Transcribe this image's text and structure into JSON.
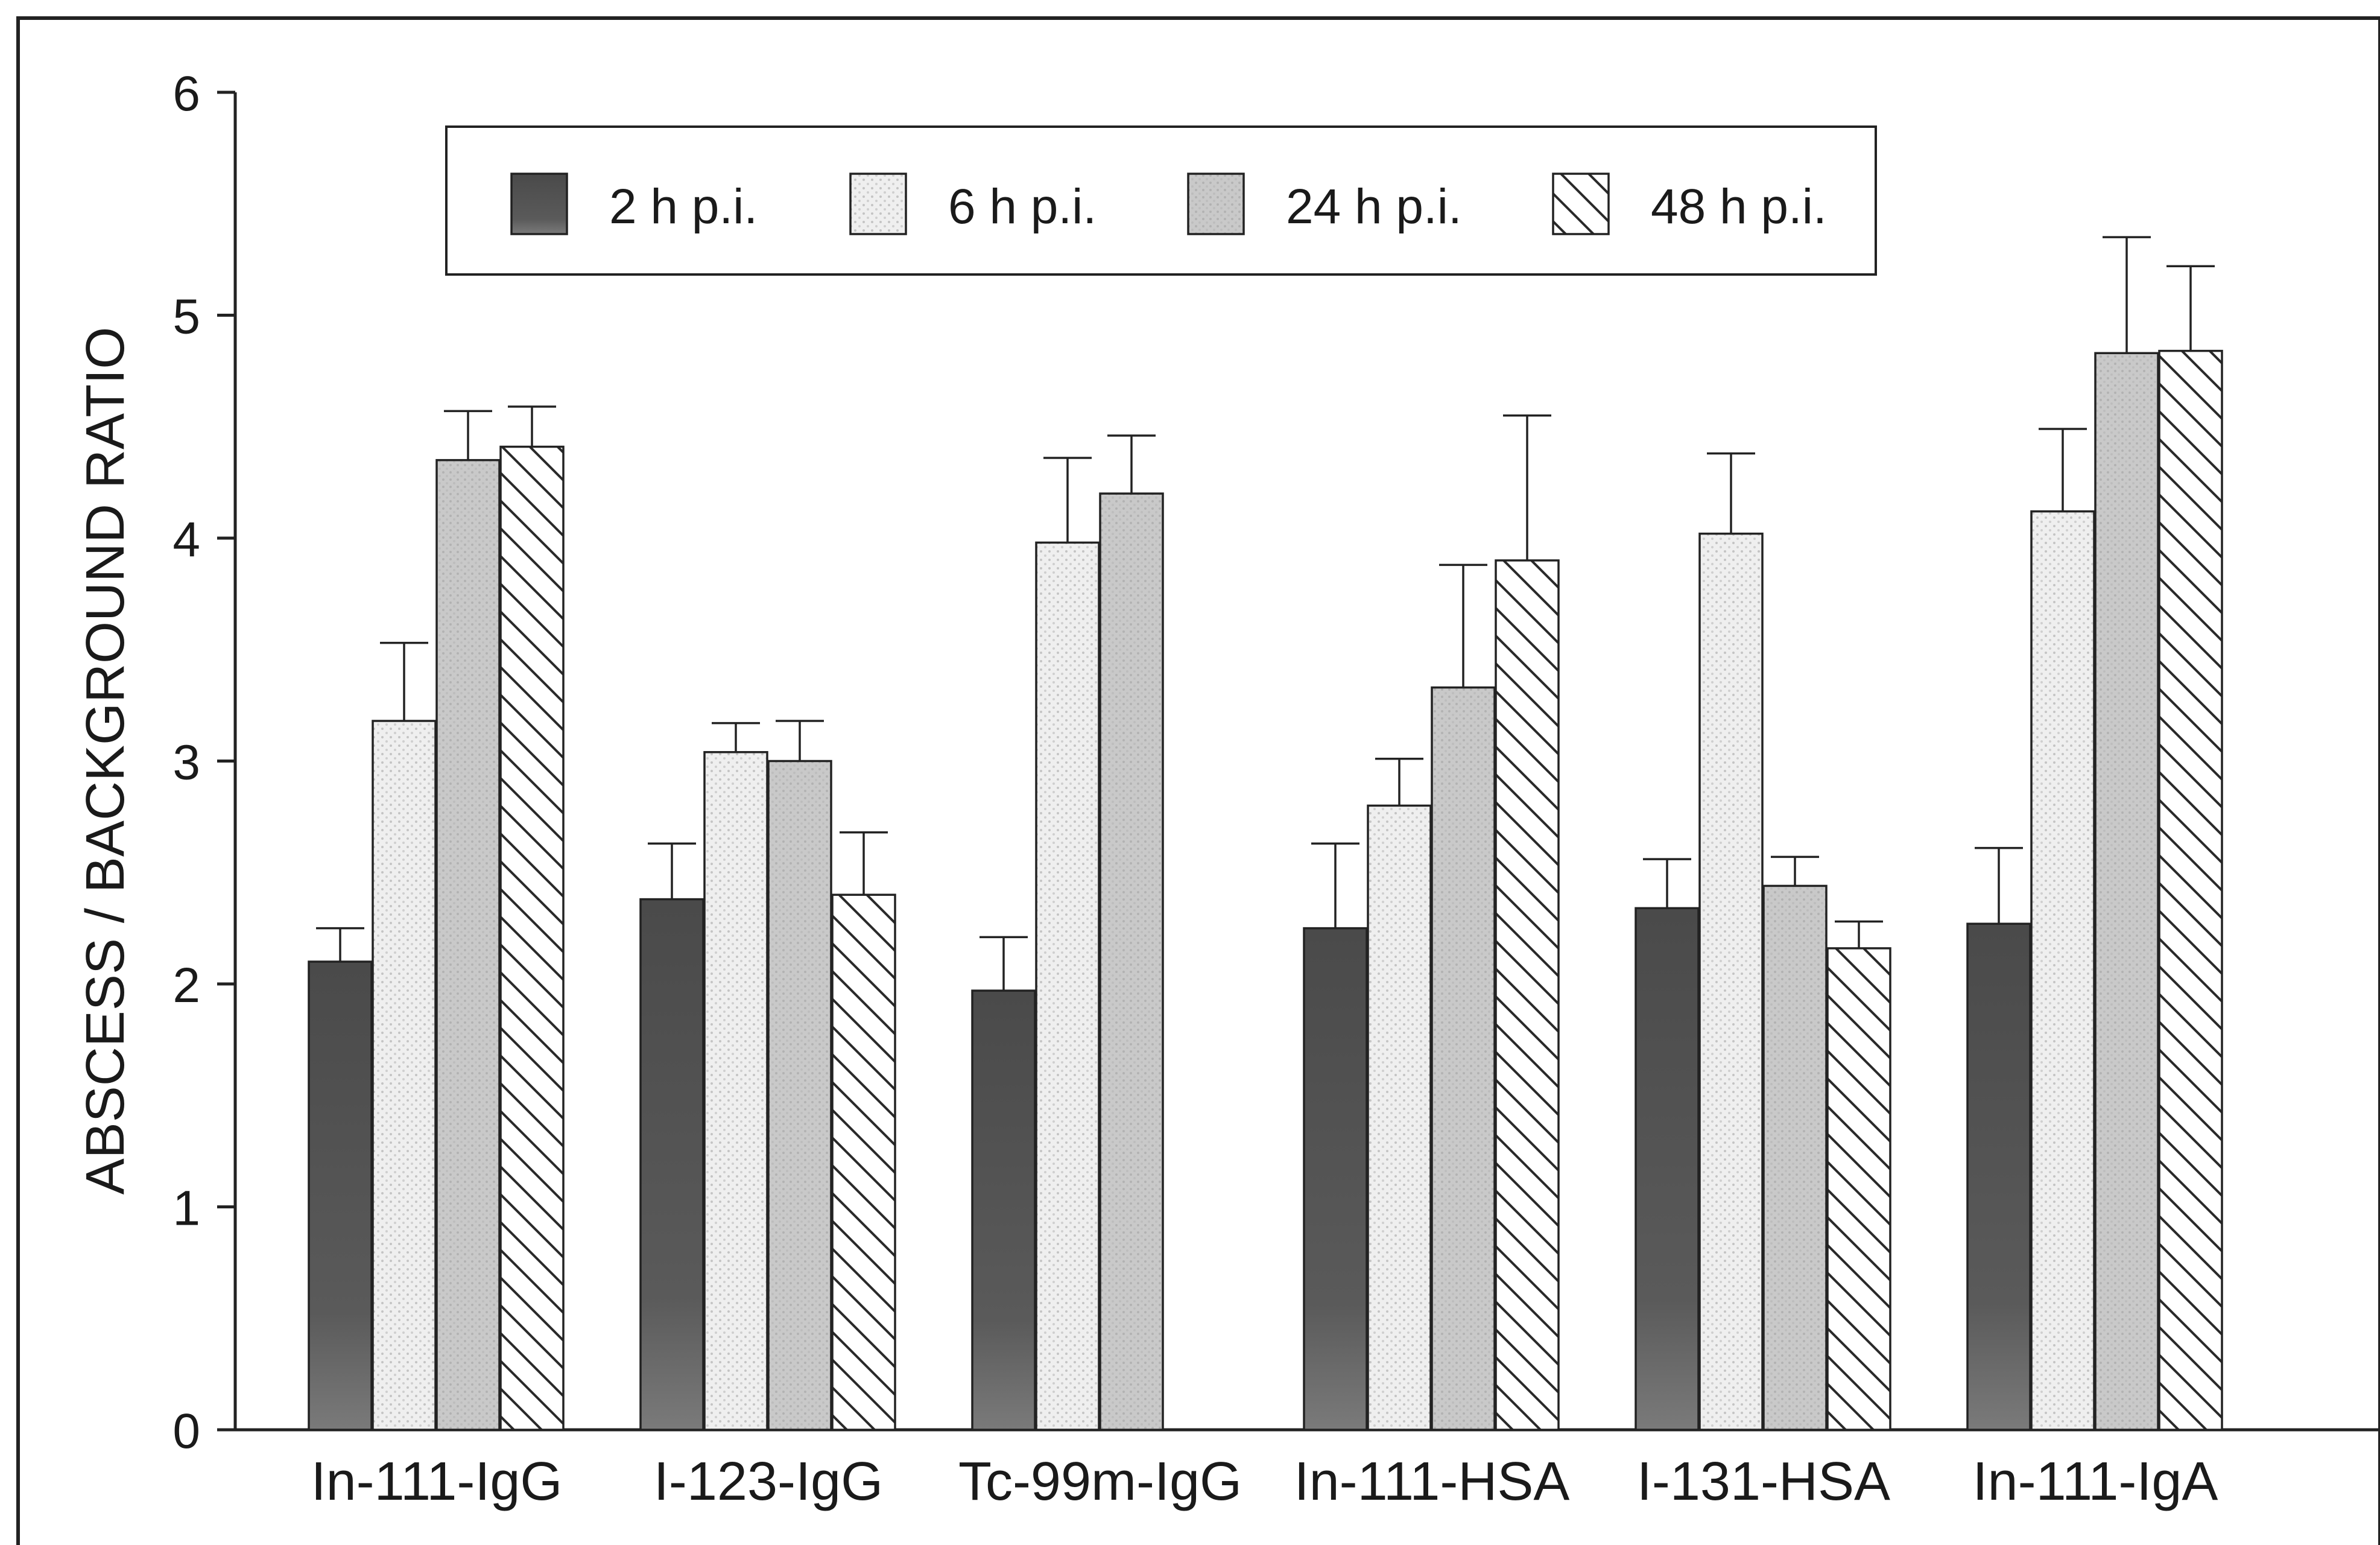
{
  "chart_data": {
    "type": "bar",
    "title": "",
    "xlabel": "",
    "ylabel": "ABSCESS / BACKGROUND RATIO",
    "ylim": [
      0,
      6
    ],
    "yticks": [
      0,
      1,
      2,
      3,
      4,
      5,
      6
    ],
    "grid": false,
    "legend_position": "top",
    "categories": [
      "In-111-IgG",
      "I-123-IgG",
      "Tc-99m-IgG",
      "In-111-HSA",
      "I-131-HSA",
      "In-111-IgA"
    ],
    "series": [
      {
        "name": "2 h p.i.",
        "values": [
          2.1,
          2.38,
          1.97,
          2.25,
          2.34,
          2.27
        ],
        "errors": [
          0.15,
          0.25,
          0.24,
          0.38,
          0.22,
          0.34
        ],
        "color": "#555555",
        "pattern": "dark"
      },
      {
        "name": "6 h p.i.",
        "values": [
          3.18,
          3.04,
          3.98,
          2.8,
          4.02,
          4.12
        ],
        "errors": [
          0.35,
          0.13,
          0.38,
          0.21,
          0.36,
          0.37
        ],
        "color": "#ececec",
        "pattern": "dots"
      },
      {
        "name": "24 h p.i.",
        "values": [
          4.35,
          3.0,
          4.2,
          3.33,
          2.44,
          4.83
        ],
        "errors": [
          0.22,
          0.18,
          0.26,
          0.55,
          0.13,
          0.52
        ],
        "color": "#c8c8c8",
        "pattern": "gray"
      },
      {
        "name": "48 h p.i.",
        "values": [
          4.41,
          2.4,
          null,
          3.9,
          2.16,
          4.84
        ],
        "errors": [
          0.18,
          0.28,
          null,
          0.65,
          0.12,
          0.38
        ],
        "color": "#ffffff",
        "pattern": "hatch"
      }
    ]
  }
}
